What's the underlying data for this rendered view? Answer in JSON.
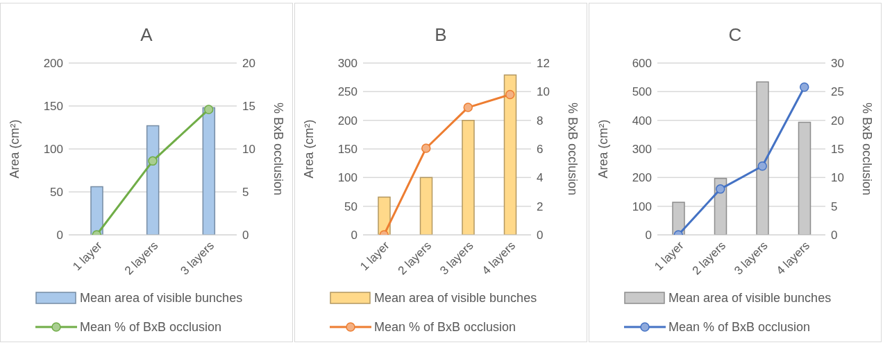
{
  "chart_data": [
    {
      "type": "bar",
      "title": "A",
      "ylabel": "Area (cm²)",
      "y2label": "% BxB occlusion",
      "categories": [
        "1 layer",
        "2 layers",
        "3 layers"
      ],
      "series": [
        {
          "name": "Mean area of visible bunches",
          "color": "#a9c8ea",
          "values": [
            56,
            127,
            148
          ]
        },
        {
          "name": "Mean % of BxB occlusion",
          "type": "line",
          "axis": "y2",
          "color": "#70ad47",
          "values": [
            0,
            8.6,
            14.6
          ]
        }
      ],
      "ylim": [
        0,
        200
      ],
      "yticks": [
        0,
        50,
        100,
        150,
        200
      ],
      "y2lim": [
        0,
        20
      ],
      "y2ticks": [
        0,
        5,
        10,
        15,
        20
      ],
      "grid": "y",
      "legend": "bottom",
      "marker": "circle"
    },
    {
      "type": "bar",
      "title": "B",
      "ylabel": "Area (cm²)",
      "y2label": "% BxB occlusion",
      "categories": [
        "1 layer",
        "2 layers",
        "3 layers",
        "4 layers"
      ],
      "series": [
        {
          "name": "Mean area of visible bunches",
          "color": "#ffd98a",
          "values": [
            66,
            100,
            200,
            279
          ]
        },
        {
          "name": "Mean % of BxB occlusion",
          "type": "line",
          "axis": "y2",
          "color": "#ed7d31",
          "values": [
            0,
            6.05,
            8.9,
            9.8
          ]
        }
      ],
      "ylim": [
        0,
        300
      ],
      "yticks": [
        0,
        50,
        100,
        150,
        200,
        250,
        300
      ],
      "y2lim": [
        0,
        12
      ],
      "y2ticks": [
        0,
        2,
        4,
        6,
        8,
        10,
        12
      ],
      "grid": "y",
      "legend": "bottom",
      "marker": "circle"
    },
    {
      "type": "bar",
      "title": "C",
      "ylabel": "Area (cm²)",
      "y2label": "% BxB occlusion",
      "categories": [
        "1 layer",
        "2 layers",
        "3 layers",
        "4 layers"
      ],
      "series": [
        {
          "name": "Mean area of visible bunches",
          "color": "#c9c9c9",
          "values": [
            114,
            197,
            534,
            393
          ]
        },
        {
          "name": "Mean % of BxB occlusion",
          "type": "line",
          "axis": "y2",
          "color": "#4472c4",
          "values": [
            0,
            8.0,
            12.0,
            25.8
          ]
        }
      ],
      "ylim": [
        0,
        600
      ],
      "yticks": [
        0,
        100,
        200,
        300,
        400,
        500,
        600
      ],
      "y2lim": [
        0,
        30
      ],
      "y2ticks": [
        0,
        5,
        10,
        15,
        20,
        25,
        30
      ],
      "grid": "y",
      "legend": "bottom",
      "marker": "circle"
    }
  ]
}
